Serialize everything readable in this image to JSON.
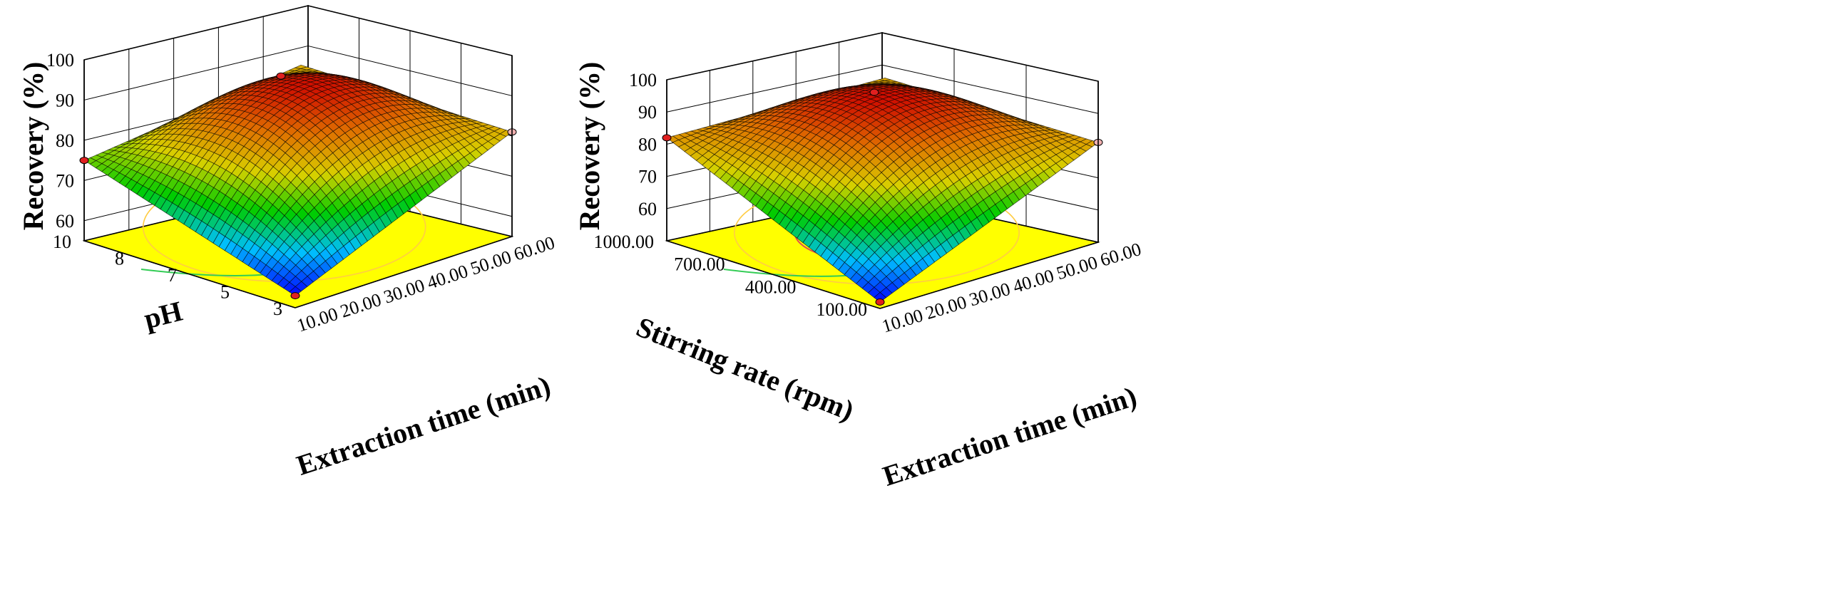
{
  "chart_data": [
    {
      "type": "surface3d",
      "title": "",
      "xlabel": "Extraction time (min)",
      "ylabel": "pH",
      "zlabel": "Recovery (%)",
      "x_ticks": [
        "10.00",
        "20.00",
        "30.00",
        "40.00",
        "50.00",
        "60.00"
      ],
      "y_ticks": [
        "3",
        "5",
        "7",
        "8",
        "10"
      ],
      "z_ticks": [
        "60",
        "70",
        "80",
        "90",
        "100"
      ],
      "xlim": [
        10,
        60
      ],
      "ylim": [
        3,
        10
      ],
      "zlim": [
        55,
        100
      ],
      "corner_values": {
        "x_min_y_min": 58,
        "x_max_y_min": 81,
        "x_min_y_max": 75,
        "x_max_y_max": 81
      },
      "peak": {
        "x": 38,
        "y": 7.5,
        "z": 92
      },
      "colormap": [
        "#0000ff",
        "#00bfff",
        "#00cc00",
        "#d8d000",
        "#e07000",
        "#cc0000"
      ],
      "floor_color": "#ffff00"
    },
    {
      "type": "surface3d",
      "title": "",
      "xlabel": "Extraction time (min)",
      "ylabel": "Stirring rate (rpm)",
      "zlabel": "Recovery (%)",
      "x_ticks": [
        "10.00",
        "20.00",
        "30.00",
        "40.00",
        "50.00",
        "60.00"
      ],
      "y_ticks": [
        "100.00",
        "400.00",
        "700.00",
        "1000.00"
      ],
      "z_ticks": [
        "60",
        "70",
        "80",
        "90",
        "100"
      ],
      "xlim": [
        10,
        60
      ],
      "ylim": [
        100,
        1000
      ],
      "zlim": [
        50,
        100
      ],
      "corner_values": {
        "x_min_y_min": 52,
        "x_max_y_min": 81,
        "x_min_y_max": 82,
        "x_max_y_max": 80
      },
      "peak": {
        "x": 38,
        "y": 640,
        "z": 93
      },
      "colormap": [
        "#0000ff",
        "#00bfff",
        "#00cc00",
        "#d8d000",
        "#e07000",
        "#cc0000"
      ],
      "floor_color": "#ffff00"
    }
  ]
}
